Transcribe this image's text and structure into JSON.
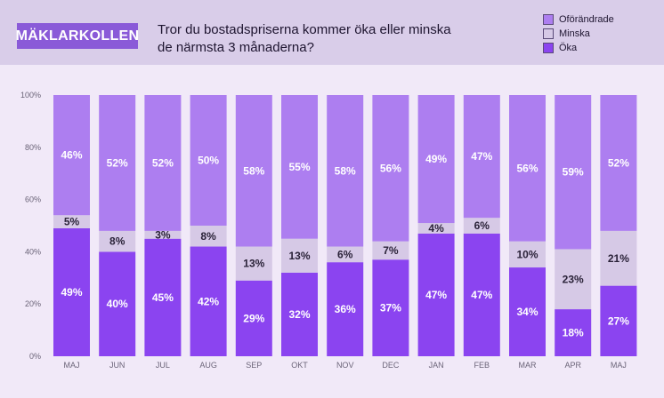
{
  "header": {
    "brand": "MÄKLARKOLLEN",
    "question_line1": "Tror du bostadspriserna kommer öka eller minska",
    "question_line2": "de närmsta 3 månaderna?"
  },
  "legend": [
    {
      "label": "Oförändrade",
      "color": "#ad7ef0"
    },
    {
      "label": "Minska",
      "color": "#d6c9e6"
    },
    {
      "label": "Öka",
      "color": "#8b44f0"
    }
  ],
  "chart_data": {
    "type": "bar",
    "stacked": true,
    "categories": [
      "MAJ",
      "JUN",
      "JUL",
      "AUG",
      "SEP",
      "OKT",
      "NOV",
      "DEC",
      "JAN",
      "FEB",
      "MAR",
      "APR",
      "MAJ"
    ],
    "series": [
      {
        "name": "Öka",
        "color": "#8b44f0",
        "label_color": "#ffffff",
        "values": [
          49,
          40,
          45,
          42,
          29,
          32,
          36,
          37,
          47,
          47,
          34,
          18,
          27
        ]
      },
      {
        "name": "Minska",
        "color": "#d6c9e6",
        "label_color": "#2a2238",
        "values": [
          5,
          8,
          3,
          8,
          13,
          13,
          6,
          7,
          4,
          6,
          10,
          23,
          21
        ]
      },
      {
        "name": "Oförändrade",
        "color": "#ad7ef0",
        "label_color": "#ffffff",
        "values": [
          46,
          52,
          52,
          50,
          58,
          55,
          58,
          56,
          49,
          47,
          56,
          59,
          52
        ]
      }
    ],
    "ylim": [
      0,
      100
    ],
    "yticks": [
      "0%",
      "20%",
      "40%",
      "60%",
      "80%",
      "100%"
    ],
    "ytick_values": [
      0,
      20,
      40,
      60,
      80,
      100
    ],
    "value_suffix": "%"
  }
}
